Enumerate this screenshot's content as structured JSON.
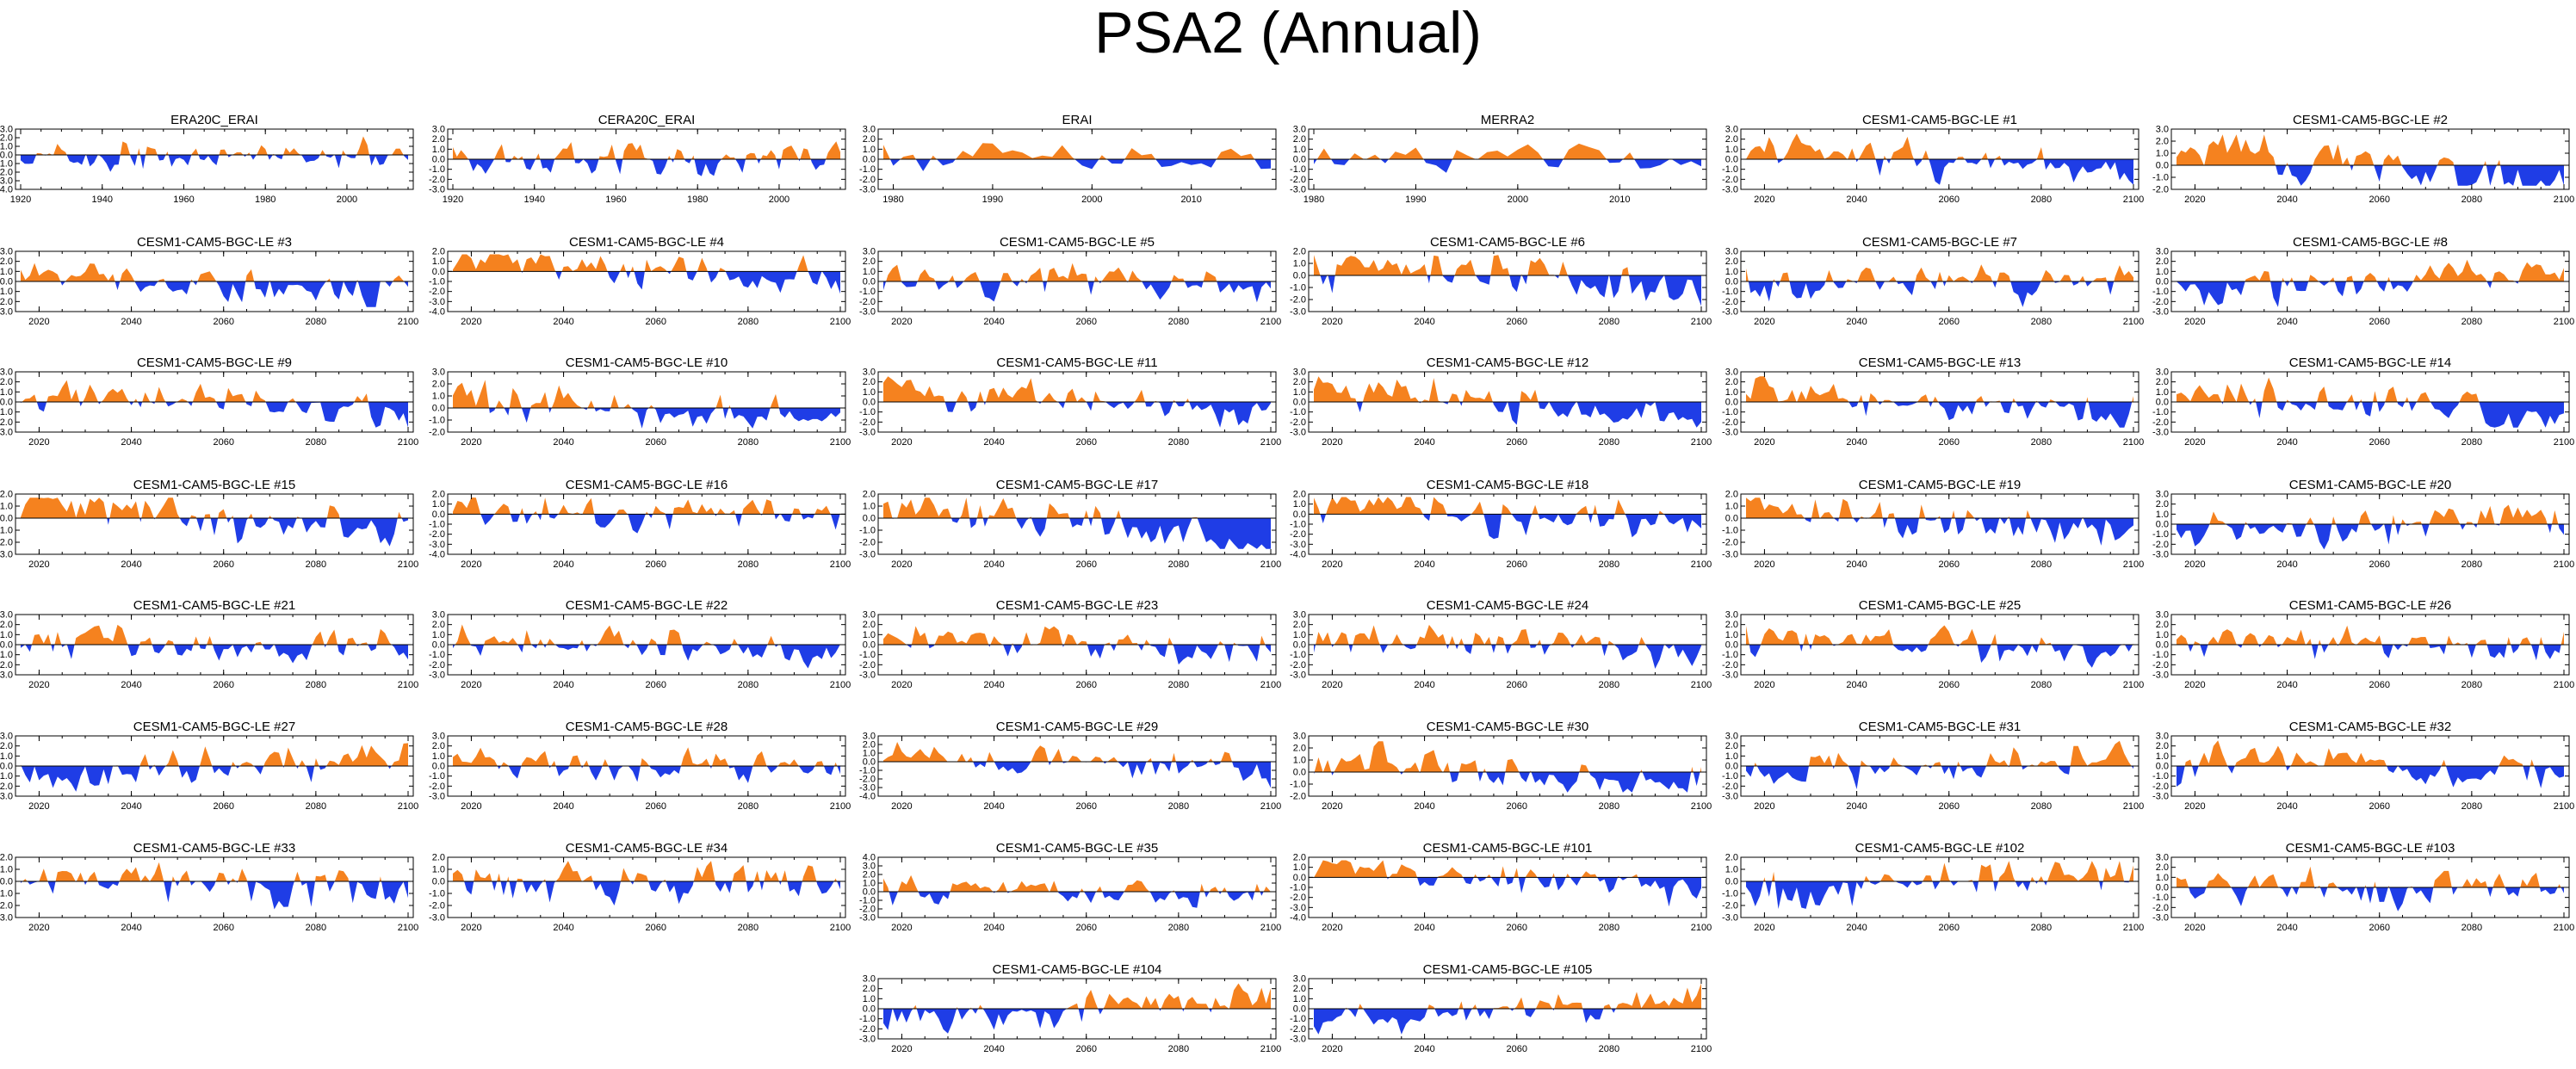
{
  "title": "PSA2 (Annual)",
  "colors": {
    "positive": "#f5821f",
    "negative": "#1f3de6",
    "axis": "#000000"
  },
  "chart_data": [
    {
      "type": "area",
      "title": "ERA20C_ERAI",
      "x_range": [
        1920,
        2015
      ],
      "xticks": [
        1920,
        1940,
        1960,
        1980,
        2000
      ],
      "yticks": [
        3.0,
        2.0,
        1.0,
        0.0,
        -1.0,
        -2.0,
        -3.0,
        -4.0
      ],
      "ylim": [
        -4.0,
        3.0
      ],
      "seed": 3,
      "trend": 0
    },
    {
      "type": "area",
      "title": "CERA20C_ERAI",
      "x_range": [
        1920,
        2015
      ],
      "xticks": [
        1920,
        1940,
        1960,
        1980,
        2000
      ],
      "yticks": [
        3.0,
        2.0,
        1.0,
        0.0,
        -1.0,
        -2.0,
        -3.0
      ],
      "ylim": [
        -3.0,
        3.0
      ],
      "seed": 7,
      "trend": 0
    },
    {
      "type": "area",
      "title": "ERAI",
      "x_range": [
        1979,
        2018
      ],
      "xticks": [
        1980,
        1990,
        2000,
        2010
      ],
      "yticks": [
        3.0,
        2.0,
        1.0,
        0.0,
        -1.0,
        -2.0,
        -3.0
      ],
      "ylim": [
        -3.0,
        3.0
      ],
      "seed": 11,
      "trend": 0
    },
    {
      "type": "area",
      "title": "MERRA2",
      "x_range": [
        1980,
        2018
      ],
      "xticks": [
        1980,
        1990,
        2000,
        2010
      ],
      "yticks": [
        3.0,
        2.0,
        1.0,
        0.0,
        -1.0,
        -2.0,
        -3.0
      ],
      "ylim": [
        -3.0,
        3.0
      ],
      "seed": 13,
      "trend": 0.4
    },
    {
      "type": "area",
      "title": "CESM1-CAM5-BGC-LE #1",
      "x_range": [
        2016,
        2100
      ],
      "xticks": [
        2020,
        2040,
        2060,
        2080,
        2100
      ],
      "yticks": [
        3.0,
        2.0,
        1.0,
        0.0,
        -1.0,
        -2.0,
        -3.0
      ],
      "ylim": [
        -3.0,
        3.0
      ],
      "seed": 17,
      "trend": 1
    },
    {
      "type": "area",
      "title": "CESM1-CAM5-BGC-LE #2",
      "x_range": [
        2016,
        2100
      ],
      "xticks": [
        2020,
        2040,
        2060,
        2080,
        2100
      ],
      "yticks": [
        3.0,
        2.0,
        1.0,
        0.0,
        -1.0,
        -2.0
      ],
      "ylim": [
        -2.0,
        3.0
      ],
      "seed": 19,
      "trend": 1
    },
    {
      "type": "area",
      "title": "CESM1-CAM5-BGC-LE #3",
      "x_range": [
        2016,
        2100
      ],
      "xticks": [
        2020,
        2040,
        2060,
        2080,
        2100
      ],
      "yticks": [
        3.0,
        2.0,
        1.0,
        0.0,
        -1.0,
        -2.0,
        -3.0
      ],
      "ylim": [
        -3.0,
        3.0
      ],
      "seed": 23,
      "trend": 1
    },
    {
      "type": "area",
      "title": "CESM1-CAM5-BGC-LE #4",
      "x_range": [
        2016,
        2100
      ],
      "xticks": [
        2020,
        2040,
        2060,
        2080,
        2100
      ],
      "yticks": [
        2.0,
        1.0,
        0.0,
        -1.0,
        -2.0,
        -3.0,
        -4.0
      ],
      "ylim": [
        -4.0,
        2.0
      ],
      "seed": 29,
      "trend": 1
    },
    {
      "type": "area",
      "title": "CESM1-CAM5-BGC-LE #5",
      "x_range": [
        2016,
        2100
      ],
      "xticks": [
        2020,
        2040,
        2060,
        2080,
        2100
      ],
      "yticks": [
        3.0,
        2.0,
        1.0,
        0.0,
        -1.0,
        -2.0,
        -3.0
      ],
      "ylim": [
        -3.0,
        3.0
      ],
      "seed": 31,
      "trend": 0.6
    },
    {
      "type": "area",
      "title": "CESM1-CAM5-BGC-LE #6",
      "x_range": [
        2016,
        2100
      ],
      "xticks": [
        2020,
        2040,
        2060,
        2080,
        2100
      ],
      "yticks": [
        2.0,
        1.0,
        0.0,
        -1.0,
        -2.0,
        -3.0
      ],
      "ylim": [
        -3.0,
        2.0
      ],
      "seed": 37,
      "trend": 0.6
    },
    {
      "type": "area",
      "title": "CESM1-CAM5-BGC-LE #7",
      "x_range": [
        2016,
        2100
      ],
      "xticks": [
        2020,
        2040,
        2060,
        2080,
        2100
      ],
      "yticks": [
        3.0,
        2.0,
        1.0,
        0.0,
        -1.0,
        -2.0,
        -3.0
      ],
      "ylim": [
        -3.0,
        3.0
      ],
      "seed": 41,
      "trend": -0.3
    },
    {
      "type": "area",
      "title": "CESM1-CAM5-BGC-LE #8",
      "x_range": [
        2016,
        2100
      ],
      "xticks": [
        2020,
        2040,
        2060,
        2080,
        2100
      ],
      "yticks": [
        3.0,
        2.0,
        1.0,
        0.0,
        -1.0,
        -2.0,
        -3.0
      ],
      "ylim": [
        -3.0,
        3.0
      ],
      "seed": 43,
      "trend": -1
    },
    {
      "type": "area",
      "title": "CESM1-CAM5-BGC-LE #9",
      "x_range": [
        2016,
        2100
      ],
      "xticks": [
        2020,
        2040,
        2060,
        2080,
        2100
      ],
      "yticks": [
        3.0,
        2.0,
        1.0,
        0.0,
        -1.0,
        -2.0,
        -3.0
      ],
      "ylim": [
        -3.0,
        3.0
      ],
      "seed": 47,
      "trend": 1
    },
    {
      "type": "area",
      "title": "CESM1-CAM5-BGC-LE #10",
      "x_range": [
        2016,
        2100
      ],
      "xticks": [
        2020,
        2040,
        2060,
        2080,
        2100
      ],
      "yticks": [
        3.0,
        2.0,
        1.0,
        0.0,
        -1.0,
        -2.0
      ],
      "ylim": [
        -2.0,
        3.0
      ],
      "seed": 53,
      "trend": 1
    },
    {
      "type": "area",
      "title": "CESM1-CAM5-BGC-LE #11",
      "x_range": [
        2016,
        2100
      ],
      "xticks": [
        2020,
        2040,
        2060,
        2080,
        2100
      ],
      "yticks": [
        3.0,
        2.0,
        1.0,
        0.0,
        -1.0,
        -2.0,
        -3.0
      ],
      "ylim": [
        -3.0,
        3.0
      ],
      "seed": 59,
      "trend": 1
    },
    {
      "type": "area",
      "title": "CESM1-CAM5-BGC-LE #12",
      "x_range": [
        2016,
        2100
      ],
      "xticks": [
        2020,
        2040,
        2060,
        2080,
        2100
      ],
      "yticks": [
        3.0,
        2.0,
        1.0,
        0.0,
        -1.0,
        -2.0,
        -3.0
      ],
      "ylim": [
        -3.0,
        3.0
      ],
      "seed": 61,
      "trend": 1
    },
    {
      "type": "area",
      "title": "CESM1-CAM5-BGC-LE #13",
      "x_range": [
        2016,
        2100
      ],
      "xticks": [
        2020,
        2040,
        2060,
        2080,
        2100
      ],
      "yticks": [
        3.0,
        2.0,
        1.0,
        0.0,
        -1.0,
        -2.0,
        -3.0
      ],
      "ylim": [
        -3.0,
        3.0
      ],
      "seed": 67,
      "trend": 1
    },
    {
      "type": "area",
      "title": "CESM1-CAM5-BGC-LE #14",
      "x_range": [
        2016,
        2100
      ],
      "xticks": [
        2020,
        2040,
        2060,
        2080,
        2100
      ],
      "yticks": [
        3.0,
        2.0,
        1.0,
        0.0,
        -1.0,
        -2.0,
        -3.0
      ],
      "ylim": [
        -3.0,
        3.0
      ],
      "seed": 71,
      "trend": 1
    },
    {
      "type": "area",
      "title": "CESM1-CAM5-BGC-LE #15",
      "x_range": [
        2016,
        2100
      ],
      "xticks": [
        2020,
        2040,
        2060,
        2080,
        2100
      ],
      "yticks": [
        2.0,
        1.0,
        0.0,
        -1.0,
        -2.0,
        -3.0
      ],
      "ylim": [
        -3.0,
        2.0
      ],
      "seed": 73,
      "trend": 1
    },
    {
      "type": "area",
      "title": "CESM1-CAM5-BGC-LE #16",
      "x_range": [
        2016,
        2100
      ],
      "xticks": [
        2020,
        2040,
        2060,
        2080,
        2100
      ],
      "yticks": [
        2.0,
        1.0,
        0.0,
        -1.0,
        -2.0,
        -3.0,
        -4.0
      ],
      "ylim": [
        -4.0,
        2.0
      ],
      "seed": 79,
      "trend": 0.2
    },
    {
      "type": "area",
      "title": "CESM1-CAM5-BGC-LE #17",
      "x_range": [
        2016,
        2100
      ],
      "xticks": [
        2020,
        2040,
        2060,
        2080,
        2100
      ],
      "yticks": [
        2.0,
        1.0,
        0.0,
        -1.0,
        -2.0,
        -3.0
      ],
      "ylim": [
        -3.0,
        2.0
      ],
      "seed": 83,
      "trend": 1
    },
    {
      "type": "area",
      "title": "CESM1-CAM5-BGC-LE #18",
      "x_range": [
        2016,
        2100
      ],
      "xticks": [
        2020,
        2040,
        2060,
        2080,
        2100
      ],
      "yticks": [
        2.0,
        1.0,
        0.0,
        -1.0,
        -2.0,
        -3.0,
        -4.0
      ],
      "ylim": [
        -4.0,
        2.0
      ],
      "seed": 89,
      "trend": 0.8
    },
    {
      "type": "area",
      "title": "CESM1-CAM5-BGC-LE #19",
      "x_range": [
        2016,
        2100
      ],
      "xticks": [
        2020,
        2040,
        2060,
        2080,
        2100
      ],
      "yticks": [
        2.0,
        1.0,
        0.0,
        -1.0,
        -2.0,
        -3.0
      ],
      "ylim": [
        -3.0,
        2.0
      ],
      "seed": 97,
      "trend": 0.6
    },
    {
      "type": "area",
      "title": "CESM1-CAM5-BGC-LE #20",
      "x_range": [
        2016,
        2100
      ],
      "xticks": [
        2020,
        2040,
        2060,
        2080,
        2100
      ],
      "yticks": [
        3.0,
        2.0,
        1.0,
        0.0,
        -1.0,
        -2.0,
        -3.0
      ],
      "ylim": [
        -3.0,
        3.0
      ],
      "seed": 101,
      "trend": -0.6
    },
    {
      "type": "area",
      "title": "CESM1-CAM5-BGC-LE #21",
      "x_range": [
        2016,
        2100
      ],
      "xticks": [
        2020,
        2040,
        2060,
        2080,
        2100
      ],
      "yticks": [
        3.0,
        2.0,
        1.0,
        0.0,
        -1.0,
        -2.0,
        -3.0
      ],
      "ylim": [
        -3.0,
        3.0
      ],
      "seed": 103,
      "trend": 0.4
    },
    {
      "type": "area",
      "title": "CESM1-CAM5-BGC-LE #22",
      "x_range": [
        2016,
        2100
      ],
      "xticks": [
        2020,
        2040,
        2060,
        2080,
        2100
      ],
      "yticks": [
        3.0,
        2.0,
        1.0,
        0.0,
        -1.0,
        -2.0,
        -3.0
      ],
      "ylim": [
        -3.0,
        3.0
      ],
      "seed": 107,
      "trend": 0.4
    },
    {
      "type": "area",
      "title": "CESM1-CAM5-BGC-LE #23",
      "x_range": [
        2016,
        2100
      ],
      "xticks": [
        2020,
        2040,
        2060,
        2080,
        2100
      ],
      "yticks": [
        3.0,
        2.0,
        1.0,
        0.0,
        -1.0,
        -2.0,
        -3.0
      ],
      "ylim": [
        -3.0,
        3.0
      ],
      "seed": 109,
      "trend": 0.4
    },
    {
      "type": "area",
      "title": "CESM1-CAM5-BGC-LE #24",
      "x_range": [
        2016,
        2100
      ],
      "xticks": [
        2020,
        2040,
        2060,
        2080,
        2100
      ],
      "yticks": [
        3.0,
        2.0,
        1.0,
        0.0,
        -1.0,
        -2.0,
        -3.0
      ],
      "ylim": [
        -3.0,
        3.0
      ],
      "seed": 113,
      "trend": 0.4
    },
    {
      "type": "area",
      "title": "CESM1-CAM5-BGC-LE #25",
      "x_range": [
        2016,
        2100
      ],
      "xticks": [
        2020,
        2040,
        2060,
        2080,
        2100
      ],
      "yticks": [
        3.0,
        2.0,
        1.0,
        0.0,
        -1.0,
        -2.0,
        -3.0
      ],
      "ylim": [
        -3.0,
        3.0
      ],
      "seed": 127,
      "trend": 0.4
    },
    {
      "type": "area",
      "title": "CESM1-CAM5-BGC-LE #26",
      "x_range": [
        2016,
        2100
      ],
      "xticks": [
        2020,
        2040,
        2060,
        2080,
        2100
      ],
      "yticks": [
        3.0,
        2.0,
        1.0,
        0.0,
        -1.0,
        -2.0,
        -3.0
      ],
      "ylim": [
        -3.0,
        3.0
      ],
      "seed": 131,
      "trend": 0.4
    },
    {
      "type": "area",
      "title": "CESM1-CAM5-BGC-LE #27",
      "x_range": [
        2016,
        2100
      ],
      "xticks": [
        2020,
        2040,
        2060,
        2080,
        2100
      ],
      "yticks": [
        3.0,
        2.0,
        1.0,
        0.0,
        -1.0,
        -2.0,
        -3.0
      ],
      "ylim": [
        -3.0,
        3.0
      ],
      "seed": 137,
      "trend": -1
    },
    {
      "type": "area",
      "title": "CESM1-CAM5-BGC-LE #28",
      "x_range": [
        2016,
        2100
      ],
      "xticks": [
        2020,
        2040,
        2060,
        2080,
        2100
      ],
      "yticks": [
        3.0,
        2.0,
        1.0,
        0.0,
        -1.0,
        -2.0,
        -3.0
      ],
      "ylim": [
        -3.0,
        3.0
      ],
      "seed": 139,
      "trend": 0.6
    },
    {
      "type": "area",
      "title": "CESM1-CAM5-BGC-LE #29",
      "x_range": [
        2016,
        2100
      ],
      "xticks": [
        2020,
        2040,
        2060,
        2080,
        2100
      ],
      "yticks": [
        3.0,
        2.0,
        1.0,
        0.0,
        -1.0,
        -2.0,
        -3.0,
        -4.0
      ],
      "ylim": [
        -4.0,
        3.0
      ],
      "seed": 149,
      "trend": 0.6
    },
    {
      "type": "area",
      "title": "CESM1-CAM5-BGC-LE #30",
      "x_range": [
        2016,
        2100
      ],
      "xticks": [
        2020,
        2040,
        2060,
        2080,
        2100
      ],
      "yticks": [
        3.0,
        2.0,
        1.0,
        0.0,
        -1.0,
        -2.0
      ],
      "ylim": [
        -2.0,
        3.0
      ],
      "seed": 151,
      "trend": 1
    },
    {
      "type": "area",
      "title": "CESM1-CAM5-BGC-LE #31",
      "x_range": [
        2016,
        2100
      ],
      "xticks": [
        2020,
        2040,
        2060,
        2080,
        2100
      ],
      "yticks": [
        3.0,
        2.0,
        1.0,
        0.0,
        -1.0,
        -2.0,
        -3.0
      ],
      "ylim": [
        -3.0,
        3.0
      ],
      "seed": 157,
      "trend": -0.6
    },
    {
      "type": "area",
      "title": "CESM1-CAM5-BGC-LE #32",
      "x_range": [
        2016,
        2100
      ],
      "xticks": [
        2020,
        2040,
        2060,
        2080,
        2100
      ],
      "yticks": [
        3.0,
        2.0,
        1.0,
        0.0,
        -1.0,
        -2.0,
        -3.0
      ],
      "ylim": [
        -3.0,
        3.0
      ],
      "seed": 163,
      "trend": 0.2
    },
    {
      "type": "area",
      "title": "CESM1-CAM5-BGC-LE #33",
      "x_range": [
        2016,
        2100
      ],
      "xticks": [
        2020,
        2040,
        2060,
        2080,
        2100
      ],
      "yticks": [
        2.0,
        1.0,
        0.0,
        -1.0,
        -2.0,
        -3.0
      ],
      "ylim": [
        -3.0,
        2.0
      ],
      "seed": 167,
      "trend": 0.6
    },
    {
      "type": "area",
      "title": "CESM1-CAM5-BGC-LE #34",
      "x_range": [
        2016,
        2100
      ],
      "xticks": [
        2020,
        2040,
        2060,
        2080,
        2100
      ],
      "yticks": [
        2.0,
        1.0,
        0.0,
        -1.0,
        -2.0,
        -3.0
      ],
      "ylim": [
        -3.0,
        2.0
      ],
      "seed": 173,
      "trend": 0.2
    },
    {
      "type": "area",
      "title": "CESM1-CAM5-BGC-LE #35",
      "x_range": [
        2016,
        2100
      ],
      "xticks": [
        2020,
        2040,
        2060,
        2080,
        2100
      ],
      "yticks": [
        4.0,
        3.0,
        2.0,
        1.0,
        0.0,
        -1.0,
        -2.0,
        -3.0
      ],
      "ylim": [
        -3.0,
        4.0
      ],
      "seed": 179,
      "trend": 0.2
    },
    {
      "type": "area",
      "title": "CESM1-CAM5-BGC-LE #101",
      "x_range": [
        2016,
        2100
      ],
      "xticks": [
        2020,
        2040,
        2060,
        2080,
        2100
      ],
      "yticks": [
        2.0,
        1.0,
        0.0,
        -1.0,
        -2.0,
        -3.0,
        -4.0
      ],
      "ylim": [
        -4.0,
        2.0
      ],
      "seed": 181,
      "trend": 1
    },
    {
      "type": "area",
      "title": "CESM1-CAM5-BGC-LE #102",
      "x_range": [
        2016,
        2100
      ],
      "xticks": [
        2020,
        2040,
        2060,
        2080,
        2100
      ],
      "yticks": [
        2.0,
        1.0,
        0.0,
        -1.0,
        -2.0,
        -3.0
      ],
      "ylim": [
        -3.0,
        2.0
      ],
      "seed": 191,
      "trend": -1
    },
    {
      "type": "area",
      "title": "CESM1-CAM5-BGC-LE #103",
      "x_range": [
        2016,
        2100
      ],
      "xticks": [
        2020,
        2040,
        2060,
        2080,
        2100
      ],
      "yticks": [
        3.0,
        2.0,
        1.0,
        0.0,
        -1.0,
        -2.0,
        -3.0
      ],
      "ylim": [
        -3.0,
        3.0
      ],
      "seed": 193,
      "trend": 0.2
    },
    {
      "type": "area",
      "title": "CESM1-CAM5-BGC-LE #104",
      "x_range": [
        2016,
        2100
      ],
      "xticks": [
        2020,
        2040,
        2060,
        2080,
        2100
      ],
      "yticks": [
        3.0,
        2.0,
        1.0,
        0.0,
        -1.0,
        -2.0,
        -3.0
      ],
      "ylim": [
        -3.0,
        3.0
      ],
      "seed": 197,
      "trend": -1
    },
    {
      "type": "area",
      "title": "CESM1-CAM5-BGC-LE #105",
      "x_range": [
        2016,
        2100
      ],
      "xticks": [
        2020,
        2040,
        2060,
        2080,
        2100
      ],
      "yticks": [
        3.0,
        2.0,
        1.0,
        0.0,
        -1.0,
        -2.0,
        -3.0
      ],
      "ylim": [
        -3.0,
        3.0
      ],
      "seed": 199,
      "trend": -0.6
    }
  ]
}
